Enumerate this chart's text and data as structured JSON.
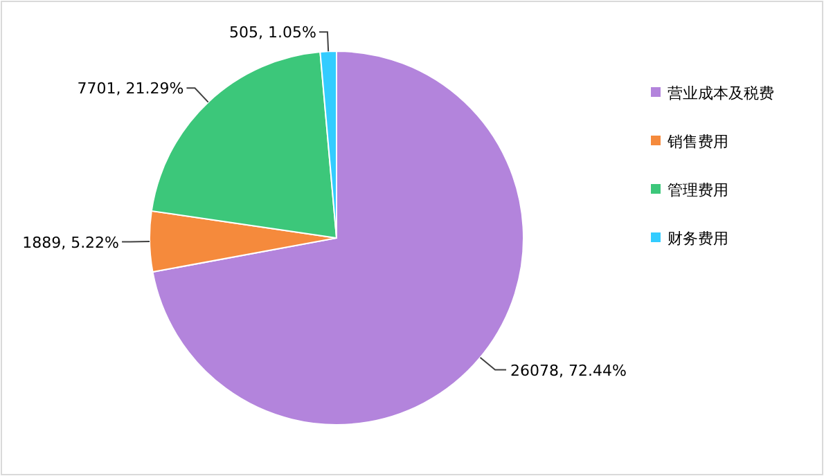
{
  "chart_data": {
    "type": "pie",
    "categories": [
      "营业成本及税费",
      "销售费用",
      "管理费用",
      "财务费用"
    ],
    "values": [
      26078,
      1889,
      7701,
      505
    ],
    "colors": [
      "#b384dc",
      "#f58a3c",
      "#3cc77a",
      "#33ccff"
    ],
    "value_labels": [
      "26078, 72.44%",
      "1889, 5.22%",
      "7701, 21.29%",
      "505, 1.05%"
    ],
    "legend": "right"
  }
}
